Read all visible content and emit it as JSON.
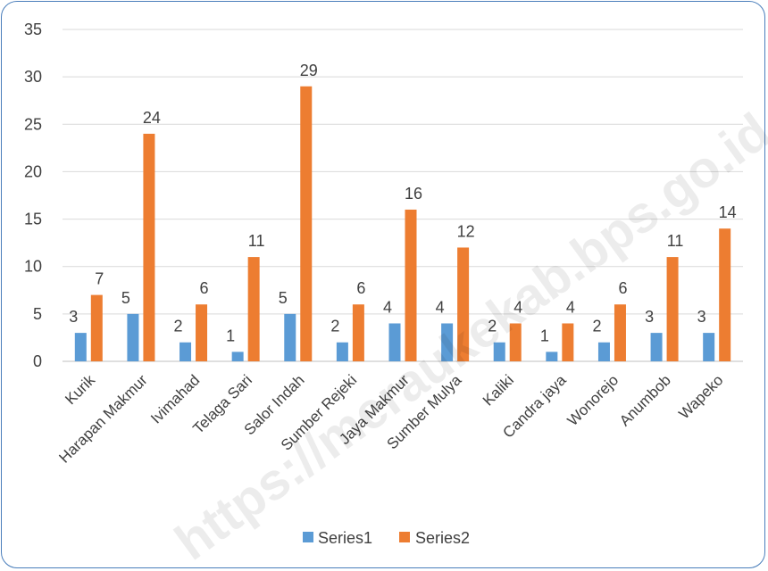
{
  "chart_data": {
    "type": "bar",
    "categories": [
      "Kurik",
      "Harapan Makmur",
      "Ivimahad",
      "Telaga Sari",
      "Salor Indah",
      "Sumber Rejeki",
      "Jaya Makmur",
      "Sumber Mulya",
      "Kaliki",
      "Candra jaya",
      "Wonorejo",
      "Anumbob",
      "Wapeko"
    ],
    "series": [
      {
        "name": "Series1",
        "color": "#5b9bd5",
        "values": [
          3,
          5,
          2,
          1,
          5,
          2,
          4,
          4,
          2,
          1,
          2,
          3,
          3
        ]
      },
      {
        "name": "Series2",
        "color": "#ed7d31",
        "values": [
          7,
          24,
          6,
          11,
          29,
          6,
          16,
          12,
          4,
          4,
          6,
          11,
          14
        ]
      }
    ],
    "yticks": [
      0,
      5,
      10,
      15,
      20,
      25,
      30,
      35
    ],
    "ylim": [
      0,
      35
    ],
    "grid": true,
    "legend": "bottom",
    "watermark": "https://meraukekab.bps.go.id"
  }
}
